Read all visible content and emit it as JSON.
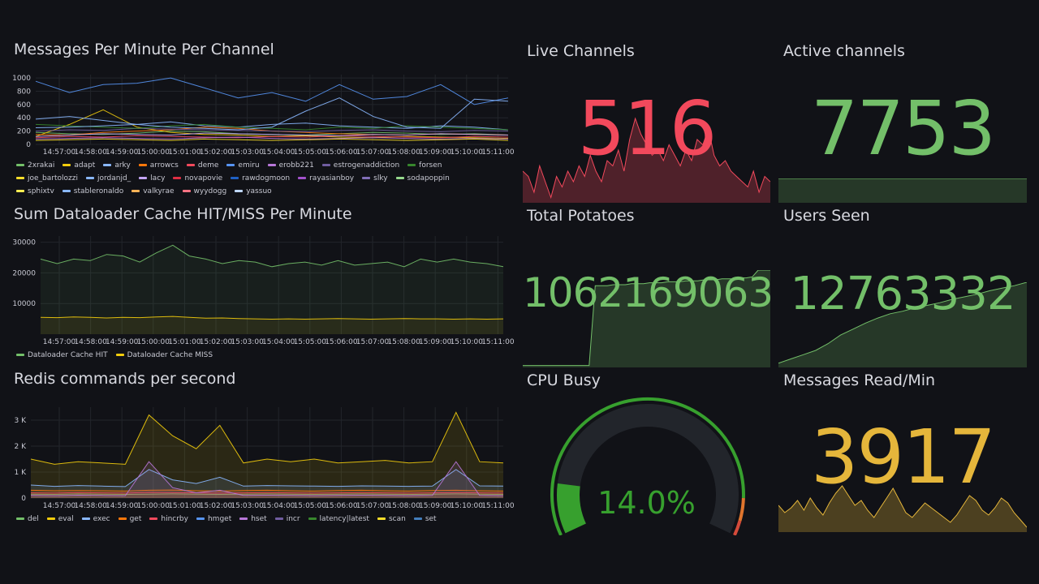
{
  "panels": {
    "messages": {
      "title": "Messages Per Minute Per Channel",
      "chart_data": {
        "type": "line",
        "yticks": [
          "1000",
          "800",
          "600",
          "400",
          "200",
          "0"
        ],
        "ylim": [
          0,
          1050
        ],
        "xticks": [
          "14:57:00",
          "14:58:00",
          "14:59:00",
          "15:00:00",
          "15:01:00",
          "15:02:00",
          "15:03:00",
          "15:04:00",
          "15:05:00",
          "15:06:00",
          "15:07:00",
          "15:08:00",
          "15:09:00",
          "15:10:00",
          "15:11:00"
        ],
        "series": [
          {
            "name": "2xrakai",
            "color": "#73bf69",
            "values": [
              180,
              160,
              150,
              170,
              200,
              190,
              160,
              150,
              140,
              160,
              180,
              170,
              150,
              160,
              140
            ]
          },
          {
            "name": "adapt",
            "color": "#f2cc0c",
            "values": [
              120,
              300,
              520,
              260,
              180,
              150,
              140,
              120,
              130,
              110,
              100,
              120,
              110,
              100,
              90
            ]
          },
          {
            "name": "arky",
            "color": "#8ab8ff",
            "values": [
              380,
              420,
              360,
              300,
              340,
              280,
              260,
              300,
              320,
              280,
              260,
              240,
              280,
              260,
              220
            ]
          },
          {
            "name": "arrowcs",
            "color": "#ff780a",
            "values": [
              150,
              140,
              180,
              200,
              220,
              260,
              240,
              200,
              180,
              160,
              150,
              140,
              160,
              150,
              140
            ]
          },
          {
            "name": "deme",
            "color": "#f2495c",
            "values": [
              100,
              120,
              110,
              130,
              120,
              110,
              100,
              120,
              110,
              130,
              120,
              110,
              100,
              120,
              110
            ]
          },
          {
            "name": "emiru",
            "color": "#5794f2",
            "values": [
              950,
              780,
              900,
              920,
              1000,
              850,
              700,
              780,
              650,
              900,
              680,
              720,
              900,
              600,
              700
            ]
          },
          {
            "name": "erobb221",
            "color": "#b877d9",
            "values": [
              80,
              90,
              100,
              90,
              80,
              100,
              110,
              90,
              80,
              90,
              100,
              90,
              80,
              90,
              80
            ]
          },
          {
            "name": "estrogenaddiction",
            "color": "#705da0",
            "values": [
              200,
              220,
              210,
              240,
              230,
              220,
              210,
              200,
              190,
              210,
              220,
              200,
              190,
              210,
              200
            ]
          },
          {
            "name": "forsen",
            "color": "#37872d",
            "values": [
              300,
              280,
              260,
              240,
              280,
              300,
              260,
              240,
              220,
              260,
              240,
              280,
              260,
              240,
              220
            ]
          },
          {
            "name": "joe_bartolozzi",
            "color": "#fade2a",
            "values": [
              60,
              70,
              80,
              70,
              60,
              80,
              70,
              60,
              70,
              80,
              70,
              60,
              70,
              80,
              60
            ]
          },
          {
            "name": "jordanjd_",
            "color": "#8ab8ff",
            "values": [
              250,
              260,
              280,
              300,
              260,
              240,
              220,
              260,
              500,
              700,
              420,
              260,
              240,
              680,
              650
            ]
          },
          {
            "name": "lacy",
            "color": "#c4a5f5",
            "values": [
              120,
              140,
              160,
              150,
              140,
              170,
              160,
              150,
              140,
              130,
              150,
              140,
              160,
              150,
              140
            ]
          }
        ]
      },
      "legend": [
        {
          "name": "2xrakai",
          "color": "#73bf69"
        },
        {
          "name": "adapt",
          "color": "#f2cc0c"
        },
        {
          "name": "arky",
          "color": "#8ab8ff"
        },
        {
          "name": "arrowcs",
          "color": "#ff780a"
        },
        {
          "name": "deme",
          "color": "#f2495c"
        },
        {
          "name": "emiru",
          "color": "#5794f2"
        },
        {
          "name": "erobb221",
          "color": "#b877d9"
        },
        {
          "name": "estrogenaddiction",
          "color": "#705da0"
        },
        {
          "name": "forsen",
          "color": "#37872d"
        },
        {
          "name": "joe_bartolozzi",
          "color": "#fade2a"
        },
        {
          "name": "jordanjd_",
          "color": "#8ab8ff"
        },
        {
          "name": "lacy",
          "color": "#c4a5f5"
        },
        {
          "name": "novapovie",
          "color": "#e02f44"
        },
        {
          "name": "rawdogmoon",
          "color": "#1f60c4"
        },
        {
          "name": "rayasianboy",
          "color": "#a352cc"
        },
        {
          "name": "slky",
          "color": "#806eb7"
        },
        {
          "name": "sodapoppin",
          "color": "#96d98d"
        },
        {
          "name": "sphixtv",
          "color": "#ffee52"
        },
        {
          "name": "stableronaldo",
          "color": "#8ab8ff"
        },
        {
          "name": "valkyrae",
          "color": "#ffb357"
        },
        {
          "name": "wyydogg",
          "color": "#ff7383"
        },
        {
          "name": "yassuo",
          "color": "#c0d8ff"
        }
      ]
    },
    "cache": {
      "title": "Sum Dataloader Cache HIT/MISS Per Minute",
      "chart_data": {
        "type": "area",
        "yticks": [
          "30000",
          "20000",
          "10000"
        ],
        "ylim": [
          0,
          32000
        ],
        "xticks": [
          "14:57:00",
          "14:58:00",
          "14:59:00",
          "15:00:00",
          "15:01:00",
          "15:02:00",
          "15:03:00",
          "15:04:00",
          "15:05:00",
          "15:06:00",
          "15:07:00",
          "15:08:00",
          "15:09:00",
          "15:10:00",
          "15:11:00"
        ],
        "series": [
          {
            "name": "Dataloader Cache HIT",
            "color": "#73bf69",
            "values": [
              24500,
              23000,
              24500,
              24000,
              26000,
              25500,
              23500,
              26500,
              29000,
              25500,
              24500,
              23000,
              24000,
              23500,
              22000,
              23000,
              23500,
              22500,
              24000,
              22500,
              23000,
              23500,
              22000,
              24500,
              23500,
              24500,
              23500,
              23000,
              22000
            ]
          },
          {
            "name": "Dataloader Cache MISS",
            "color": "#f2cc0c",
            "values": [
              5500,
              5400,
              5600,
              5500,
              5300,
              5500,
              5400,
              5600,
              5800,
              5500,
              5200,
              5300,
              5100,
              5000,
              4900,
              5000,
              4900,
              5000,
              5100,
              5000,
              4900,
              5000,
              5100,
              5000,
              5000,
              4900,
              5000,
              4900,
              5000
            ]
          }
        ]
      },
      "legend": [
        {
          "name": "Dataloader Cache HIT",
          "color": "#73bf69"
        },
        {
          "name": "Dataloader Cache MISS",
          "color": "#f2cc0c"
        }
      ]
    },
    "redis": {
      "title": "Redis commands per second",
      "chart_data": {
        "type": "area",
        "yticks": [
          "3 K",
          "2 K",
          "1 K",
          "0"
        ],
        "ylim": [
          0,
          3500
        ],
        "xticks": [
          "14:57:00",
          "14:58:00",
          "14:59:00",
          "15:00:00",
          "15:01:00",
          "15:02:00",
          "15:03:00",
          "15:04:00",
          "15:05:00",
          "15:06:00",
          "15:07:00",
          "15:08:00",
          "15:09:00",
          "15:10:00",
          "15:11:00"
        ],
        "series": [
          {
            "name": "del",
            "color": "#73bf69",
            "values": [
              150,
              140,
              160,
              150,
              140,
              150,
              160,
              150,
              140,
              150,
              160,
              150,
              140,
              150,
              160,
              150,
              140,
              150,
              160,
              150,
              140
            ]
          },
          {
            "name": "eval",
            "color": "#f2cc0c",
            "values": [
              1500,
              1300,
              1400,
              1350,
              1300,
              3200,
              2400,
              1900,
              2800,
              1350,
              1500,
              1400,
              1500,
              1350,
              1400,
              1450,
              1350,
              1400,
              3300,
              1400,
              1350
            ]
          },
          {
            "name": "exec",
            "color": "#8ab8ff",
            "values": [
              500,
              450,
              480,
              460,
              440,
              1100,
              700,
              560,
              800,
              460,
              480,
              470,
              460,
              450,
              470,
              460,
              450,
              460,
              1100,
              470,
              460
            ]
          },
          {
            "name": "get",
            "color": "#ff780a",
            "values": [
              300,
              280,
              290,
              280,
              270,
              300,
              310,
              280,
              270,
              290,
              300,
              280,
              270,
              290,
              300,
              280,
              270,
              290,
              300,
              280,
              270
            ]
          },
          {
            "name": "hincrby",
            "color": "#f2495c",
            "values": [
              200,
              190,
              210,
              200,
              190,
              220,
              210,
              200,
              190,
              200,
              210,
              200,
              190,
              200,
              210,
              200,
              190,
              200,
              210,
              200,
              190
            ]
          },
          {
            "name": "hset",
            "color": "#b877d9",
            "values": [
              100,
              90,
              110,
              100,
              90,
              1400,
              400,
              200,
              300,
              100,
              110,
              100,
              90,
              100,
              110,
              100,
              90,
              100,
              1400,
              100,
              90
            ]
          }
        ]
      },
      "legend": [
        {
          "name": "del",
          "color": "#73bf69"
        },
        {
          "name": "eval",
          "color": "#f2cc0c"
        },
        {
          "name": "exec",
          "color": "#8ab8ff"
        },
        {
          "name": "get",
          "color": "#ff780a"
        },
        {
          "name": "hincrby",
          "color": "#f2495c"
        },
        {
          "name": "hmget",
          "color": "#5794f2"
        },
        {
          "name": "hset",
          "color": "#b877d9"
        },
        {
          "name": "incr",
          "color": "#705da0"
        },
        {
          "name": "latency|latest",
          "color": "#37872d"
        },
        {
          "name": "scan",
          "color": "#fade2a"
        },
        {
          "name": "set",
          "color": "#447ebc"
        }
      ]
    },
    "live_channels": {
      "title": "Live Channels",
      "value": "516",
      "color": "#f2495c",
      "spark": [
        0.3,
        0.25,
        0.1,
        0.35,
        0.2,
        0.05,
        0.25,
        0.15,
        0.3,
        0.2,
        0.35,
        0.25,
        0.45,
        0.3,
        0.2,
        0.4,
        0.35,
        0.5,
        0.3,
        0.6,
        0.8,
        0.65,
        0.55,
        0.45,
        0.5,
        0.4,
        0.55,
        0.45,
        0.35,
        0.5,
        0.4,
        0.6,
        0.55,
        0.7,
        0.45,
        0.35,
        0.4,
        0.3,
        0.25,
        0.2,
        0.15,
        0.3,
        0.1,
        0.25,
        0.2
      ]
    },
    "active_channels": {
      "title": "Active channels",
      "value": "7753",
      "color": "#73bf69",
      "spark": [
        1,
        1
      ]
    },
    "total_potatoes": {
      "title": "Total Potatoes",
      "value": "1062169063",
      "color": "#73bf69",
      "spark": [
        0.02,
        0.02,
        0.02,
        0.02,
        0.02,
        0.02,
        0.02,
        0.02,
        0.02,
        0.02,
        0.02,
        0.02,
        0.84,
        0.84,
        0.84,
        0.85,
        0.85,
        0.85,
        0.86,
        0.86,
        0.86,
        0.87,
        0.87,
        0.87,
        0.88,
        0.88,
        0.88,
        0.89,
        0.89,
        0.89,
        0.9,
        0.9,
        0.9,
        0.91,
        0.91,
        0.91,
        0.92,
        0.92,
        0.93,
        1.0,
        1.0,
        1.0
      ]
    },
    "users_seen": {
      "title": "Users Seen",
      "value": "12763332",
      "color": "#73bf69",
      "spark": [
        0.05,
        0.1,
        0.15,
        0.2,
        0.28,
        0.38,
        0.45,
        0.52,
        0.58,
        0.63,
        0.66,
        0.7,
        0.73,
        0.76,
        0.8,
        0.83,
        0.86,
        0.9,
        0.93,
        0.96,
        1.0
      ]
    },
    "cpu_busy": {
      "title": "CPU Busy",
      "value": "14.0%",
      "percent": 14.0,
      "color": "#37a02e"
    },
    "messages_read": {
      "title": "Messages Read/Min",
      "value": "3917",
      "color": "#e5b63b",
      "spark": [
        0.55,
        0.4,
        0.5,
        0.65,
        0.45,
        0.7,
        0.5,
        0.35,
        0.6,
        0.8,
        0.95,
        0.75,
        0.55,
        0.65,
        0.45,
        0.3,
        0.5,
        0.7,
        0.9,
        0.65,
        0.4,
        0.3,
        0.45,
        0.6,
        0.5,
        0.4,
        0.3,
        0.2,
        0.35,
        0.55,
        0.75,
        0.65,
        0.45,
        0.35,
        0.5,
        0.7,
        0.6,
        0.4,
        0.25,
        0.1
      ]
    }
  }
}
